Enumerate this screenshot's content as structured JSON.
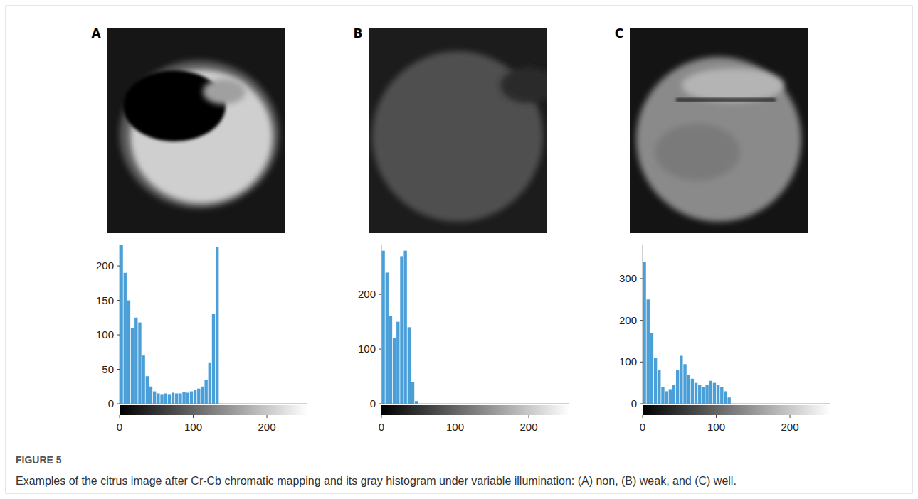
{
  "figure": {
    "label": "FIGURE 5",
    "caption": "Examples of the citrus image after Cr-Cb chromatic mapping and its gray histogram under variable illumination: (A) non, (B) weak, and (C) well."
  },
  "chart_data": [
    {
      "type": "histogram",
      "title": "A",
      "color": "#4a9fd8",
      "bins": [
        0,
        5,
        10,
        15,
        20,
        25,
        30,
        35,
        40,
        45,
        50,
        55,
        60,
        65,
        70,
        75,
        80,
        85,
        90,
        95,
        100,
        105,
        110,
        115,
        120,
        125,
        130,
        135,
        140,
        145,
        150,
        155,
        160,
        165,
        170,
        175,
        180,
        185,
        190,
        195,
        200,
        205,
        210,
        215,
        220,
        225,
        230,
        235,
        240,
        245,
        250,
        255
      ],
      "values": [
        230,
        190,
        150,
        110,
        125,
        118,
        70,
        40,
        25,
        18,
        15,
        14,
        15,
        14,
        16,
        15,
        15,
        17,
        16,
        18,
        20,
        22,
        25,
        35,
        60,
        130,
        228,
        0,
        0,
        0,
        0,
        0,
        0,
        0,
        0,
        0,
        0,
        0,
        0,
        0,
        0,
        0,
        0,
        0,
        0,
        0,
        0,
        0,
        0,
        0,
        0
      ],
      "xlim": [
        0,
        255
      ],
      "xticks": [
        0,
        100,
        200
      ],
      "ylim": [
        0,
        230
      ],
      "yticks": [
        0,
        50,
        100,
        150,
        200
      ],
      "grid": false
    },
    {
      "type": "histogram",
      "title": "B",
      "color": "#4a9fd8",
      "bins": [
        0,
        5,
        10,
        15,
        20,
        25,
        30,
        35,
        40,
        45,
        50,
        55,
        60,
        65,
        70,
        75,
        80,
        85,
        90,
        95,
        100,
        105,
        110,
        115,
        120,
        125,
        130,
        135,
        140,
        145,
        150,
        155,
        160,
        165,
        170,
        175,
        180,
        185,
        190,
        195,
        200,
        205,
        210,
        215,
        220,
        225,
        230,
        235,
        240,
        245,
        250,
        255
      ],
      "values": [
        280,
        240,
        160,
        120,
        150,
        270,
        280,
        140,
        40,
        5,
        0,
        0,
        0,
        0,
        0,
        0,
        0,
        0,
        0,
        0,
        0,
        0,
        0,
        0,
        0,
        0,
        0,
        0,
        0,
        0,
        0,
        0,
        0,
        0,
        0,
        0,
        0,
        0,
        0,
        0,
        0,
        0,
        0,
        0,
        0,
        0,
        0,
        0,
        0,
        0,
        0
      ],
      "xlim": [
        0,
        255
      ],
      "xticks": [
        0,
        100,
        200
      ],
      "ylim": [
        0,
        290
      ],
      "yticks": [
        0,
        100,
        200
      ],
      "grid": false
    },
    {
      "type": "histogram",
      "title": "C",
      "color": "#4a9fd8",
      "bins": [
        0,
        5,
        10,
        15,
        20,
        25,
        30,
        35,
        40,
        45,
        50,
        55,
        60,
        65,
        70,
        75,
        80,
        85,
        90,
        95,
        100,
        105,
        110,
        115,
        120,
        125,
        130,
        135,
        140,
        145,
        150,
        155,
        160,
        165,
        170,
        175,
        180,
        185,
        190,
        195,
        200,
        205,
        210,
        215,
        220,
        225,
        230,
        235,
        240,
        245,
        250,
        255
      ],
      "values": [
        340,
        250,
        170,
        110,
        80,
        40,
        30,
        35,
        45,
        80,
        115,
        95,
        70,
        60,
        50,
        45,
        40,
        45,
        55,
        50,
        45,
        40,
        30,
        15,
        0,
        0,
        0,
        0,
        0,
        0,
        0,
        0,
        0,
        0,
        0,
        0,
        0,
        0,
        0,
        0,
        0,
        0,
        0,
        0,
        0,
        0,
        0,
        0,
        0,
        0,
        0
      ],
      "xlim": [
        0,
        255
      ],
      "xticks": [
        0,
        100,
        200
      ],
      "ylim": [
        0,
        380
      ],
      "yticks": [
        0,
        100,
        200,
        300
      ],
      "grid": false
    }
  ]
}
